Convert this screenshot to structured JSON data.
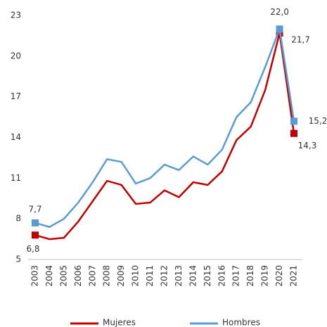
{
  "chart_data": {
    "type": "line",
    "categories": [
      "2003",
      "2004",
      "2005",
      "2006",
      "2007",
      "2008",
      "2009",
      "2010",
      "2011",
      "2012",
      "2013",
      "2014",
      "2015",
      "2016",
      "2017",
      "2018",
      "2019",
      "2020",
      "2021"
    ],
    "series": [
      {
        "name": "Mujeres",
        "color": "#c00000",
        "values": [
          6.8,
          6.5,
          6.6,
          7.8,
          9.3,
          10.8,
          10.5,
          9.1,
          9.2,
          10.1,
          9.6,
          10.7,
          10.5,
          11.5,
          13.8,
          14.8,
          17.5,
          21.7,
          14.3
        ],
        "value_labels": [
          "6,8",
          null,
          null,
          null,
          null,
          null,
          null,
          null,
          null,
          null,
          null,
          null,
          null,
          null,
          null,
          null,
          null,
          "21,7",
          "14,3"
        ]
      },
      {
        "name": "Hombres",
        "color": "#5b9bd5",
        "values": [
          7.7,
          7.4,
          8.0,
          9.2,
          10.7,
          12.4,
          12.2,
          10.6,
          11.0,
          12.0,
          11.6,
          12.6,
          12.0,
          13.1,
          15.5,
          16.6,
          19.2,
          22.0,
          15.2
        ],
        "value_labels": [
          "7,7",
          null,
          null,
          null,
          null,
          null,
          null,
          null,
          null,
          null,
          null,
          null,
          null,
          null,
          null,
          null,
          null,
          "22,0",
          "15,2"
        ]
      }
    ],
    "ylim": [
      5,
      23
    ],
    "yticks": [
      5,
      8,
      11,
      14,
      17,
      20,
      23
    ],
    "grid": false,
    "legend": "bottom"
  }
}
